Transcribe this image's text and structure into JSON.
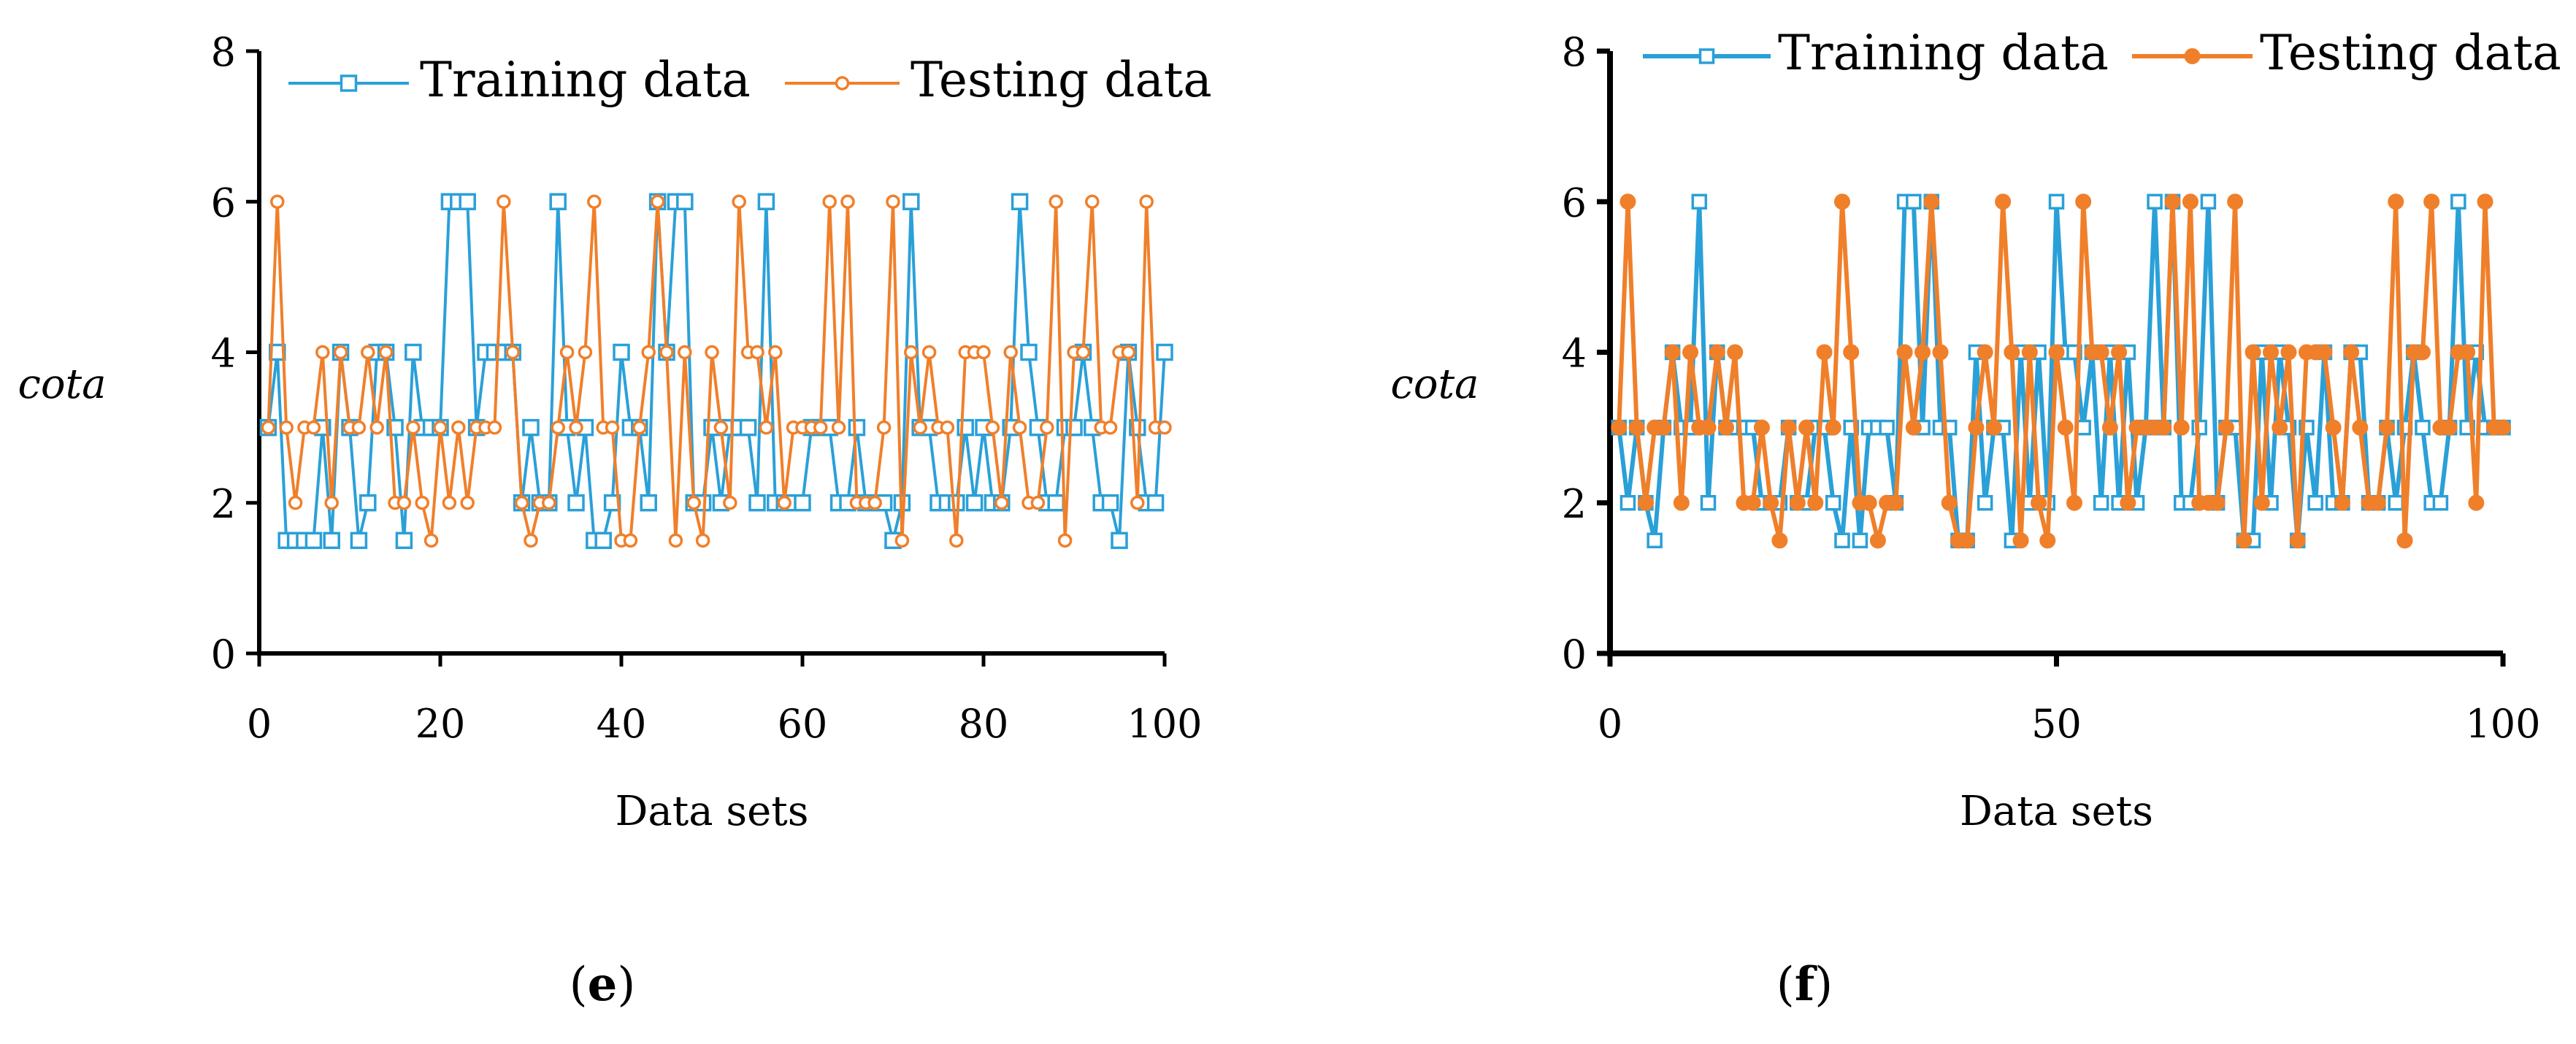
{
  "chart_data": [
    {
      "type": "line",
      "panel_label": "e",
      "caption_open": "(",
      "caption_close": ")",
      "xlabel": "Data sets",
      "ylabel": "cota",
      "xlim": [
        0,
        100
      ],
      "ylim": [
        0,
        8
      ],
      "xticks": [
        0,
        20,
        40,
        60,
        80,
        100
      ],
      "yticks": [
        0,
        2,
        4,
        6,
        8
      ],
      "grid": false,
      "legend_position": "top",
      "series": [
        {
          "name": "Training data",
          "color": "#2aa0d8",
          "marker": "square-hollow",
          "x": [
            1,
            2,
            3,
            4,
            5,
            6,
            7,
            8,
            9,
            10,
            11,
            12,
            13,
            14,
            15,
            16,
            17,
            18,
            19,
            20,
            21,
            22,
            23,
            24,
            25,
            26,
            27,
            28,
            29,
            30,
            31,
            32,
            33,
            34,
            35,
            36,
            37,
            38,
            39,
            40,
            41,
            42,
            43,
            44,
            45,
            46,
            47,
            48,
            49,
            50,
            51,
            52,
            53,
            54,
            55,
            56,
            57,
            58,
            59,
            60,
            61,
            62,
            63,
            64,
            65,
            66,
            67,
            68,
            69,
            70,
            71,
            72,
            73,
            74,
            75,
            76,
            77,
            78,
            79,
            80,
            81,
            82,
            83,
            84,
            85,
            86,
            87,
            88,
            89,
            90,
            91,
            92,
            93,
            94,
            95,
            96,
            97,
            98,
            99,
            100
          ],
          "values": [
            3,
            4,
            1.5,
            1.5,
            1.5,
            1.5,
            3,
            1.5,
            4,
            3,
            1.5,
            2,
            4,
            4,
            3,
            1.5,
            4,
            3,
            3,
            3,
            6,
            6,
            6,
            3,
            4,
            4,
            4,
            4,
            2,
            3,
            2,
            2,
            6,
            3,
            2,
            3,
            1.5,
            1.5,
            2,
            4,
            3,
            3,
            2,
            6,
            4,
            6,
            6,
            2,
            2,
            3,
            2,
            3,
            3,
            3,
            2,
            6,
            2,
            2,
            2,
            2,
            3,
            3,
            3,
            2,
            2,
            3,
            2,
            2,
            2,
            1.5,
            2,
            6,
            3,
            3,
            2,
            2,
            2,
            3,
            2,
            3,
            2,
            2,
            3,
            6,
            4,
            3,
            2,
            2,
            3,
            3,
            4,
            3,
            2,
            2,
            1.5,
            4,
            3,
            2,
            2,
            4
          ]
        },
        {
          "name": "Testing data",
          "color": "#f07f2a",
          "marker": "circle-hollow",
          "x": [
            1,
            2,
            3,
            4,
            5,
            6,
            7,
            8,
            9,
            10,
            11,
            12,
            13,
            14,
            15,
            16,
            17,
            18,
            19,
            20,
            21,
            22,
            23,
            24,
            25,
            26,
            27,
            28,
            29,
            30,
            31,
            32,
            33,
            34,
            35,
            36,
            37,
            38,
            39,
            40,
            41,
            42,
            43,
            44,
            45,
            46,
            47,
            48,
            49,
            50,
            51,
            52,
            53,
            54,
            55,
            56,
            57,
            58,
            59,
            60,
            61,
            62,
            63,
            64,
            65,
            66,
            67,
            68,
            69,
            70,
            71,
            72,
            73,
            74,
            75,
            76,
            77,
            78,
            79,
            80,
            81,
            82,
            83,
            84,
            85,
            86,
            87,
            88,
            89,
            90,
            91,
            92,
            93,
            94,
            95,
            96,
            97,
            98,
            99,
            100
          ],
          "values": [
            3,
            6,
            3,
            2,
            3,
            3,
            4,
            2,
            4,
            3,
            3,
            4,
            3,
            4,
            2,
            2,
            3,
            2,
            1.5,
            3,
            2,
            3,
            2,
            3,
            3,
            3,
            6,
            4,
            2,
            1.5,
            2,
            2,
            3,
            4,
            3,
            4,
            6,
            3,
            3,
            1.5,
            1.5,
            3,
            4,
            6,
            4,
            1.5,
            4,
            2,
            1.5,
            4,
            3,
            2,
            6,
            4,
            4,
            3,
            4,
            2,
            3,
            3,
            3,
            3,
            6,
            3,
            6,
            2,
            2,
            2,
            3,
            6,
            1.5,
            4,
            3,
            4,
            3,
            3,
            1.5,
            4,
            4,
            4,
            3,
            2,
            4,
            3,
            2,
            2,
            3,
            6,
            1.5,
            4,
            4,
            6,
            3,
            3,
            4,
            4,
            2,
            6,
            3,
            3
          ]
        }
      ]
    },
    {
      "type": "line",
      "panel_label": "f",
      "caption_open": "(",
      "caption_close": ")",
      "xlabel": "Data sets",
      "ylabel": "cota",
      "xlim": [
        0,
        100
      ],
      "ylim": [
        0,
        8
      ],
      "xticks": [
        0,
        50,
        100
      ],
      "yticks": [
        0,
        2,
        4,
        6,
        8
      ],
      "grid": false,
      "legend_position": "top",
      "series": [
        {
          "name": "Training data",
          "color": "#2aa0d8",
          "marker": "square-hollow",
          "x": [
            1,
            2,
            3,
            4,
            5,
            6,
            7,
            8,
            9,
            10,
            11,
            12,
            13,
            14,
            15,
            16,
            17,
            18,
            19,
            20,
            21,
            22,
            23,
            24,
            25,
            26,
            27,
            28,
            29,
            30,
            31,
            32,
            33,
            34,
            35,
            36,
            37,
            38,
            39,
            40,
            41,
            42,
            43,
            44,
            45,
            46,
            47,
            48,
            49,
            50,
            51,
            52,
            53,
            54,
            55,
            56,
            57,
            58,
            59,
            60,
            61,
            62,
            63,
            64,
            65,
            66,
            67,
            68,
            69,
            70,
            71,
            72,
            73,
            74,
            75,
            76,
            77,
            78,
            79,
            80,
            81,
            82,
            83,
            84,
            85,
            86,
            87,
            88,
            89,
            90,
            91,
            92,
            93,
            94,
            95,
            96,
            97,
            98,
            99,
            100
          ],
          "values": [
            3,
            2,
            3,
            2,
            1.5,
            3,
            4,
            3,
            3,
            6,
            2,
            4,
            3,
            3,
            3,
            3,
            2,
            2,
            2,
            3,
            2,
            2,
            3,
            3,
            2,
            1.5,
            3,
            1.5,
            3,
            3,
            3,
            2,
            6,
            6,
            3,
            6,
            3,
            3,
            1.5,
            1.5,
            4,
            2,
            3,
            3,
            1.5,
            4,
            2,
            4,
            2,
            6,
            4,
            4,
            3,
            4,
            2,
            4,
            2,
            4,
            2,
            3,
            6,
            3,
            6,
            2,
            2,
            3,
            6,
            2,
            3,
            3,
            1.5,
            1.5,
            4,
            2,
            4,
            3,
            1.5,
            3,
            2,
            4,
            2,
            2,
            4,
            4,
            2,
            2,
            3,
            2,
            3,
            4,
            3,
            2,
            2,
            3,
            6,
            3,
            4,
            3,
            3,
            3
          ]
        },
        {
          "name": "Testing data",
          "color": "#f07f2a",
          "marker": "circle-filled",
          "x": [
            1,
            2,
            3,
            4,
            5,
            6,
            7,
            8,
            9,
            10,
            11,
            12,
            13,
            14,
            15,
            16,
            17,
            18,
            19,
            20,
            21,
            22,
            23,
            24,
            25,
            26,
            27,
            28,
            29,
            30,
            31,
            32,
            33,
            34,
            35,
            36,
            37,
            38,
            39,
            40,
            41,
            42,
            43,
            44,
            45,
            46,
            47,
            48,
            49,
            50,
            51,
            52,
            53,
            54,
            55,
            56,
            57,
            58,
            59,
            60,
            61,
            62,
            63,
            64,
            65,
            66,
            67,
            68,
            69,
            70,
            71,
            72,
            73,
            74,
            75,
            76,
            77,
            78,
            79,
            80,
            81,
            82,
            83,
            84,
            85,
            86,
            87,
            88,
            89,
            90,
            91,
            92,
            93,
            94,
            95,
            96,
            97,
            98,
            99,
            100
          ],
          "values": [
            3,
            6,
            3,
            2,
            3,
            3,
            4,
            2,
            4,
            3,
            3,
            4,
            3,
            4,
            2,
            2,
            3,
            2,
            1.5,
            3,
            2,
            3,
            2,
            4,
            3,
            6,
            4,
            2,
            2,
            1.5,
            2,
            2,
            4,
            3,
            4,
            6,
            4,
            2,
            1.5,
            1.5,
            3,
            4,
            3,
            6,
            4,
            1.5,
            4,
            2,
            1.5,
            4,
            3,
            2,
            6,
            4,
            4,
            3,
            4,
            2,
            3,
            3,
            3,
            3,
            6,
            3,
            6,
            2,
            2,
            2,
            3,
            6,
            1.5,
            4,
            2,
            4,
            3,
            4,
            1.5,
            4,
            4,
            4,
            3,
            2,
            4,
            3,
            2,
            2,
            3,
            6,
            1.5,
            4,
            4,
            6,
            3,
            3,
            4,
            4,
            2,
            6,
            3,
            3
          ]
        }
      ]
    }
  ]
}
